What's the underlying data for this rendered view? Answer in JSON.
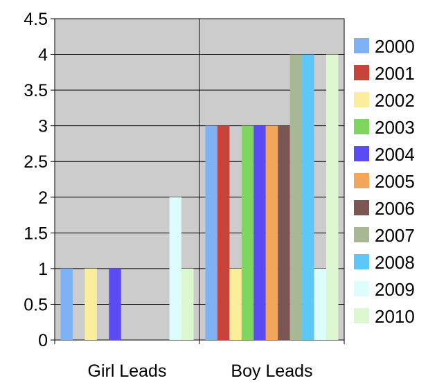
{
  "chart_data": {
    "type": "bar",
    "categories": [
      "Girl Leads",
      "Boy Leads"
    ],
    "ylim": [
      0,
      4.5
    ],
    "yticks": [
      "0",
      "0.5",
      "1",
      "1.5",
      "2",
      "2.5",
      "3",
      "3.5",
      "4",
      "4.5"
    ],
    "grid": true,
    "legend_position": "right",
    "series": [
      {
        "name": "2000",
        "color": "#7FB2F4",
        "values": [
          1,
          3
        ]
      },
      {
        "name": "2001",
        "color": "#C8443A",
        "values": [
          0,
          3
        ]
      },
      {
        "name": "2002",
        "color": "#FAEE9C",
        "values": [
          1,
          1
        ]
      },
      {
        "name": "2003",
        "color": "#7ED65E",
        "values": [
          0,
          3
        ]
      },
      {
        "name": "2004",
        "color": "#5A4BF3",
        "values": [
          1,
          3
        ]
      },
      {
        "name": "2005",
        "color": "#F2A65C",
        "values": [
          0,
          3
        ]
      },
      {
        "name": "2006",
        "color": "#7C5652",
        "values": [
          0,
          3
        ]
      },
      {
        "name": "2007",
        "color": "#A8B894",
        "values": [
          0,
          4
        ]
      },
      {
        "name": "2008",
        "color": "#5DC8F7",
        "values": [
          0,
          4
        ]
      },
      {
        "name": "2009",
        "color": "#DDFDFD",
        "values": [
          2,
          1
        ]
      },
      {
        "name": "2010",
        "color": "#DDF8D0",
        "values": [
          1,
          4
        ]
      }
    ]
  }
}
